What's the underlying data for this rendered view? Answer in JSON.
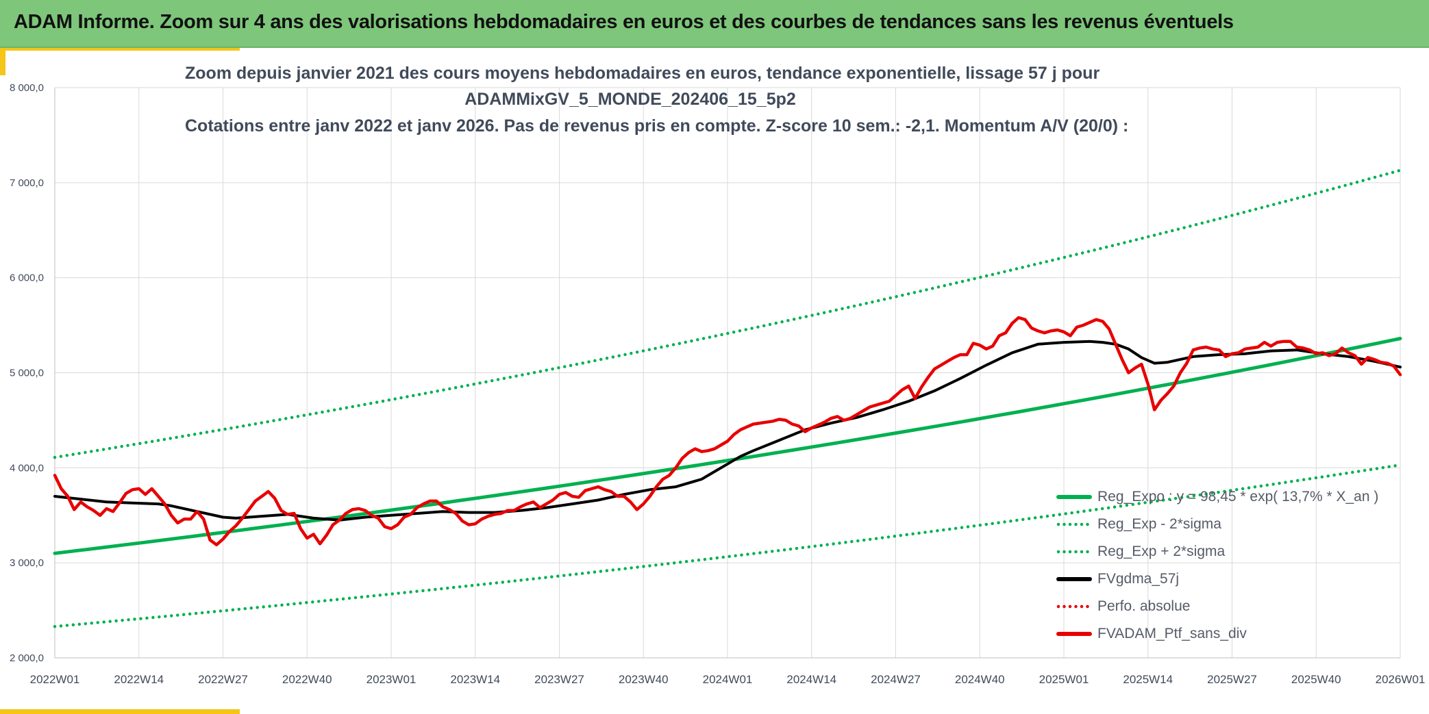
{
  "header": {
    "title": "ADAM Informe. Zoom sur 4 ans des valorisations hebdomadaires en euros et des courbes de tendances sans les revenus éventuels"
  },
  "colors": {
    "header_bg": "#7dc67a",
    "accent": "#f5c518",
    "trend_green": "#00b050",
    "price_red": "#e80000",
    "ma_black": "#000000",
    "axis_text": "#404a5a",
    "grid": "#d9d9d9"
  },
  "chart_data": {
    "type": "line",
    "title_lines": [
      "Zoom depuis janvier 2021 des cours moyens hebdomadaires en euros, tendance exponentielle, lissage 57 j pour",
      "ADAMMixGV_5_MONDE_202406_15_5p2",
      "Cotations entre janv 2022 et janv 2026. Pas de revenus pris en compte. Z-score 10 sem.: -2,1. Momentum A/V (20/0) :"
    ],
    "x_unit": "weeks since 2022W01",
    "xlim": [
      0,
      208
    ],
    "x_ticks": [
      {
        "x": 0,
        "label": "2022W01"
      },
      {
        "x": 13,
        "label": "2022W14"
      },
      {
        "x": 26,
        "label": "2022W27"
      },
      {
        "x": 39,
        "label": "2022W40"
      },
      {
        "x": 52,
        "label": "2023W01"
      },
      {
        "x": 65,
        "label": "2023W14"
      },
      {
        "x": 78,
        "label": "2023W27"
      },
      {
        "x": 91,
        "label": "2023W40"
      },
      {
        "x": 104,
        "label": "2024W01"
      },
      {
        "x": 117,
        "label": "2024W14"
      },
      {
        "x": 130,
        "label": "2024W27"
      },
      {
        "x": 143,
        "label": "2024W40"
      },
      {
        "x": 156,
        "label": "2025W01"
      },
      {
        "x": 169,
        "label": "2025W14"
      },
      {
        "x": 182,
        "label": "2025W27"
      },
      {
        "x": 195,
        "label": "2025W40"
      },
      {
        "x": 208,
        "label": "2026W01"
      }
    ],
    "ylim": [
      2000,
      8000
    ],
    "y_ticks": [
      {
        "v": 2000,
        "label": "2 000,0"
      },
      {
        "v": 3000,
        "label": "3 000,0"
      },
      {
        "v": 4000,
        "label": "4 000,0"
      },
      {
        "v": 5000,
        "label": "5 000,0"
      },
      {
        "v": 6000,
        "label": "6 000,0"
      },
      {
        "v": 7000,
        "label": "7 000,0"
      },
      {
        "v": 8000,
        "label": "8 000,0"
      }
    ],
    "grid": true,
    "legend_position": "bottom-right",
    "series": [
      {
        "name": "Reg_Expo : y = 98,45 * exp( 13,7% *  X_an )",
        "kind": "exp-trend",
        "color": "#00b050",
        "style": "solid",
        "start": 3100,
        "end": 5360
      },
      {
        "name": "Reg_Exp - 2*sigma",
        "kind": "exp-trend",
        "color": "#00b050",
        "style": "dotted",
        "start": 2330,
        "end": 4030
      },
      {
        "name": "Reg_Exp + 2*sigma",
        "kind": "exp-trend",
        "color": "#00b050",
        "style": "dotted",
        "start": 4110,
        "end": 7130
      },
      {
        "name": "FVgdma_57j",
        "kind": "line",
        "color": "#000000",
        "style": "solid",
        "points": [
          [
            0,
            3700
          ],
          [
            4,
            3670
          ],
          [
            8,
            3640
          ],
          [
            12,
            3630
          ],
          [
            16,
            3620
          ],
          [
            18,
            3600
          ],
          [
            22,
            3540
          ],
          [
            26,
            3480
          ],
          [
            28,
            3470
          ],
          [
            32,
            3490
          ],
          [
            36,
            3510
          ],
          [
            40,
            3470
          ],
          [
            44,
            3450
          ],
          [
            48,
            3480
          ],
          [
            52,
            3500
          ],
          [
            56,
            3520
          ],
          [
            60,
            3540
          ],
          [
            64,
            3530
          ],
          [
            68,
            3530
          ],
          [
            72,
            3550
          ],
          [
            76,
            3580
          ],
          [
            80,
            3620
          ],
          [
            84,
            3660
          ],
          [
            88,
            3720
          ],
          [
            92,
            3770
          ],
          [
            96,
            3800
          ],
          [
            100,
            3880
          ],
          [
            102,
            3960
          ],
          [
            104,
            4040
          ],
          [
            106,
            4120
          ],
          [
            108,
            4180
          ],
          [
            112,
            4290
          ],
          [
            116,
            4400
          ],
          [
            120,
            4470
          ],
          [
            124,
            4530
          ],
          [
            128,
            4610
          ],
          [
            132,
            4700
          ],
          [
            136,
            4810
          ],
          [
            140,
            4940
          ],
          [
            144,
            5080
          ],
          [
            148,
            5210
          ],
          [
            152,
            5300
          ],
          [
            156,
            5320
          ],
          [
            160,
            5330
          ],
          [
            162,
            5320
          ],
          [
            164,
            5300
          ],
          [
            166,
            5250
          ],
          [
            168,
            5160
          ],
          [
            170,
            5100
          ],
          [
            172,
            5110
          ],
          [
            176,
            5170
          ],
          [
            180,
            5190
          ],
          [
            184,
            5200
          ],
          [
            188,
            5230
          ],
          [
            192,
            5240
          ],
          [
            196,
            5200
          ],
          [
            200,
            5170
          ],
          [
            204,
            5120
          ],
          [
            208,
            5060
          ]
        ]
      },
      {
        "name": "Perfo. absolue",
        "kind": "legend-only",
        "color": "#e80000",
        "style": "dotted"
      },
      {
        "name": "FVADAM_Ptf_sans_div",
        "kind": "line",
        "color": "#e80000",
        "style": "solid",
        "points": [
          [
            0,
            3920
          ],
          [
            1,
            3780
          ],
          [
            2,
            3700
          ],
          [
            3,
            3560
          ],
          [
            4,
            3640
          ],
          [
            5,
            3590
          ],
          [
            6,
            3550
          ],
          [
            7,
            3500
          ],
          [
            8,
            3570
          ],
          [
            9,
            3540
          ],
          [
            10,
            3630
          ],
          [
            11,
            3730
          ],
          [
            12,
            3770
          ],
          [
            13,
            3780
          ],
          [
            14,
            3720
          ],
          [
            15,
            3780
          ],
          [
            16,
            3700
          ],
          [
            17,
            3620
          ],
          [
            18,
            3500
          ],
          [
            19,
            3420
          ],
          [
            20,
            3460
          ],
          [
            21,
            3460
          ],
          [
            22,
            3540
          ],
          [
            23,
            3460
          ],
          [
            24,
            3240
          ],
          [
            25,
            3190
          ],
          [
            26,
            3250
          ],
          [
            27,
            3330
          ],
          [
            28,
            3390
          ],
          [
            29,
            3470
          ],
          [
            30,
            3560
          ],
          [
            31,
            3650
          ],
          [
            32,
            3700
          ],
          [
            33,
            3750
          ],
          [
            34,
            3680
          ],
          [
            35,
            3550
          ],
          [
            36,
            3510
          ],
          [
            37,
            3520
          ],
          [
            38,
            3360
          ],
          [
            39,
            3260
          ],
          [
            40,
            3300
          ],
          [
            41,
            3200
          ],
          [
            42,
            3290
          ],
          [
            43,
            3400
          ],
          [
            44,
            3450
          ],
          [
            45,
            3520
          ],
          [
            46,
            3560
          ],
          [
            47,
            3570
          ],
          [
            48,
            3550
          ],
          [
            49,
            3500
          ],
          [
            50,
            3470
          ],
          [
            51,
            3380
          ],
          [
            52,
            3360
          ],
          [
            53,
            3400
          ],
          [
            54,
            3480
          ],
          [
            55,
            3510
          ],
          [
            56,
            3580
          ],
          [
            57,
            3620
          ],
          [
            58,
            3650
          ],
          [
            59,
            3650
          ],
          [
            60,
            3590
          ],
          [
            61,
            3560
          ],
          [
            62,
            3520
          ],
          [
            63,
            3440
          ],
          [
            64,
            3400
          ],
          [
            65,
            3410
          ],
          [
            66,
            3460
          ],
          [
            67,
            3490
          ],
          [
            68,
            3510
          ],
          [
            69,
            3520
          ],
          [
            70,
            3550
          ],
          [
            71,
            3550
          ],
          [
            72,
            3590
          ],
          [
            73,
            3620
          ],
          [
            74,
            3640
          ],
          [
            75,
            3580
          ],
          [
            76,
            3620
          ],
          [
            77,
            3660
          ],
          [
            78,
            3720
          ],
          [
            79,
            3740
          ],
          [
            80,
            3700
          ],
          [
            81,
            3690
          ],
          [
            82,
            3760
          ],
          [
            83,
            3780
          ],
          [
            84,
            3800
          ],
          [
            85,
            3770
          ],
          [
            86,
            3750
          ],
          [
            87,
            3700
          ],
          [
            88,
            3700
          ],
          [
            89,
            3640
          ],
          [
            90,
            3560
          ],
          [
            91,
            3620
          ],
          [
            92,
            3700
          ],
          [
            93,
            3800
          ],
          [
            94,
            3880
          ],
          [
            95,
            3920
          ],
          [
            96,
            4000
          ],
          [
            97,
            4100
          ],
          [
            98,
            4160
          ],
          [
            99,
            4200
          ],
          [
            100,
            4170
          ],
          [
            101,
            4180
          ],
          [
            102,
            4200
          ],
          [
            103,
            4240
          ],
          [
            104,
            4280
          ],
          [
            105,
            4350
          ],
          [
            106,
            4400
          ],
          [
            107,
            4430
          ],
          [
            108,
            4460
          ],
          [
            109,
            4470
          ],
          [
            110,
            4480
          ],
          [
            111,
            4490
          ],
          [
            112,
            4510
          ],
          [
            113,
            4500
          ],
          [
            114,
            4460
          ],
          [
            115,
            4440
          ],
          [
            116,
            4380
          ],
          [
            117,
            4420
          ],
          [
            118,
            4450
          ],
          [
            119,
            4480
          ],
          [
            120,
            4520
          ],
          [
            121,
            4540
          ],
          [
            122,
            4500
          ],
          [
            123,
            4520
          ],
          [
            124,
            4560
          ],
          [
            125,
            4600
          ],
          [
            126,
            4640
          ],
          [
            127,
            4660
          ],
          [
            128,
            4680
          ],
          [
            129,
            4700
          ],
          [
            130,
            4760
          ],
          [
            131,
            4820
          ],
          [
            132,
            4860
          ],
          [
            133,
            4730
          ],
          [
            134,
            4850
          ],
          [
            135,
            4950
          ],
          [
            136,
            5040
          ],
          [
            137,
            5080
          ],
          [
            138,
            5120
          ],
          [
            139,
            5160
          ],
          [
            140,
            5190
          ],
          [
            141,
            5190
          ],
          [
            142,
            5310
          ],
          [
            143,
            5290
          ],
          [
            144,
            5250
          ],
          [
            145,
            5280
          ],
          [
            146,
            5390
          ],
          [
            147,
            5420
          ],
          [
            148,
            5520
          ],
          [
            149,
            5580
          ],
          [
            150,
            5560
          ],
          [
            151,
            5470
          ],
          [
            152,
            5440
          ],
          [
            153,
            5420
          ],
          [
            154,
            5440
          ],
          [
            155,
            5450
          ],
          [
            156,
            5430
          ],
          [
            157,
            5390
          ],
          [
            158,
            5480
          ],
          [
            159,
            5500
          ],
          [
            160,
            5530
          ],
          [
            161,
            5560
          ],
          [
            162,
            5540
          ],
          [
            163,
            5460
          ],
          [
            164,
            5300
          ],
          [
            165,
            5140
          ],
          [
            166,
            5000
          ],
          [
            167,
            5050
          ],
          [
            168,
            5090
          ],
          [
            169,
            4880
          ],
          [
            170,
            4610
          ],
          [
            171,
            4710
          ],
          [
            172,
            4780
          ],
          [
            173,
            4860
          ],
          [
            174,
            5000
          ],
          [
            175,
            5100
          ],
          [
            176,
            5240
          ],
          [
            177,
            5260
          ],
          [
            178,
            5270
          ],
          [
            179,
            5250
          ],
          [
            180,
            5240
          ],
          [
            181,
            5170
          ],
          [
            182,
            5200
          ],
          [
            183,
            5210
          ],
          [
            184,
            5250
          ],
          [
            185,
            5260
          ],
          [
            186,
            5270
          ],
          [
            187,
            5320
          ],
          [
            188,
            5280
          ],
          [
            189,
            5320
          ],
          [
            190,
            5330
          ],
          [
            191,
            5330
          ],
          [
            192,
            5270
          ],
          [
            193,
            5260
          ],
          [
            194,
            5240
          ],
          [
            195,
            5200
          ],
          [
            196,
            5210
          ],
          [
            197,
            5180
          ],
          [
            198,
            5200
          ],
          [
            199,
            5260
          ],
          [
            200,
            5210
          ],
          [
            201,
            5180
          ],
          [
            202,
            5090
          ],
          [
            203,
            5160
          ],
          [
            204,
            5140
          ],
          [
            205,
            5110
          ],
          [
            206,
            5100
          ],
          [
            207,
            5070
          ],
          [
            208,
            4980
          ]
        ]
      }
    ]
  }
}
